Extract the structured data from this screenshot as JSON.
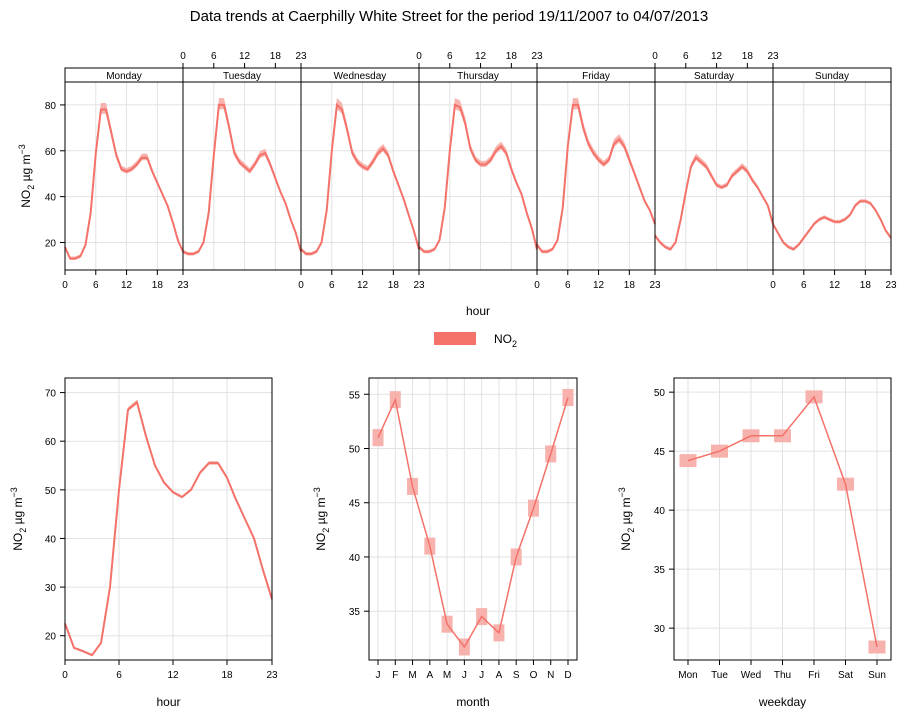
{
  "title": "Data trends at Caerphilly White Street for the period 19/11/2007 to 04/07/2013",
  "colors": {
    "line": "#f4726a",
    "band": "#f7b2ad",
    "panel_border": "#000000",
    "grid": "#e2e2e2"
  },
  "legend": {
    "label": "NO",
    "subscript": "2"
  },
  "ylabel": {
    "pre": "NO",
    "sub": "2",
    "unit": " µg m",
    "sup": "−3"
  },
  "chart_data": [
    {
      "type": "line",
      "name": "weekday-hour",
      "xlabel": "hour",
      "ylim": [
        8,
        90
      ],
      "yticks": [
        20,
        40,
        60,
        80
      ],
      "xticks_bottom": [
        {
          "day": 0,
          "ticks": [
            "0",
            "6",
            "12",
            "18",
            "23"
          ]
        },
        {
          "day": 1,
          "ticks": []
        },
        {
          "day": 2,
          "ticks": [
            "0",
            "6",
            "12",
            "18",
            "23"
          ]
        },
        {
          "day": 3,
          "ticks": []
        },
        {
          "day": 4,
          "ticks": [
            "0",
            "6",
            "12",
            "18",
            "23"
          ]
        },
        {
          "day": 5,
          "ticks": []
        },
        {
          "day": 6,
          "ticks": [
            "0",
            "6",
            "12",
            "18",
            "23"
          ]
        }
      ],
      "xticks_top": [
        {
          "day": 0,
          "ticks": []
        },
        {
          "day": 1,
          "ticks": [
            "0",
            "6",
            "12",
            "18",
            "23"
          ]
        },
        {
          "day": 2,
          "ticks": []
        },
        {
          "day": 3,
          "ticks": [
            "0",
            "6",
            "12",
            "18",
            "23"
          ]
        },
        {
          "day": 4,
          "ticks": []
        },
        {
          "day": 5,
          "ticks": [
            "0",
            "6",
            "12",
            "18",
            "23"
          ]
        },
        {
          "day": 6,
          "ticks": []
        }
      ],
      "xtick_values": [
        0,
        6,
        12,
        18,
        23
      ],
      "days": [
        "Monday",
        "Tuesday",
        "Wednesday",
        "Thursday",
        "Friday",
        "Saturday",
        "Sunday"
      ],
      "series": [
        {
          "values": [
            18,
            13,
            13,
            14,
            19,
            33,
            59,
            78,
            78,
            68,
            58,
            52,
            51,
            52,
            54,
            57,
            57,
            51,
            46,
            41,
            36,
            29,
            21,
            16
          ]
        },
        {
          "values": [
            16,
            15,
            15,
            16,
            20,
            33,
            58,
            80,
            80,
            70,
            59,
            55,
            53,
            51,
            54,
            58,
            59,
            54,
            48,
            42,
            37,
            30,
            24,
            16
          ]
        },
        {
          "values": [
            17,
            15,
            15,
            16,
            20,
            34,
            60,
            80,
            78,
            69,
            59,
            55,
            53,
            52,
            55,
            59,
            61,
            58,
            51,
            45,
            39,
            32,
            25,
            17
          ]
        },
        {
          "values": [
            18,
            16,
            16,
            17,
            21,
            35,
            60,
            80,
            79,
            72,
            61,
            56,
            54,
            54,
            56,
            60,
            62,
            59,
            52,
            46,
            41,
            33,
            26,
            17
          ]
        },
        {
          "values": [
            19,
            16,
            16,
            17,
            21,
            35,
            62,
            80,
            80,
            70,
            63,
            59,
            56,
            54,
            56,
            63,
            65,
            62,
            56,
            50,
            44,
            38,
            34,
            28
          ]
        },
        {
          "values": [
            23,
            20,
            18,
            17,
            20,
            30,
            42,
            53,
            57,
            55,
            53,
            49,
            45,
            44,
            45,
            49,
            51,
            53,
            51,
            47,
            44,
            40,
            36,
            28
          ]
        },
        {
          "values": [
            28,
            24,
            20,
            18,
            17,
            19,
            22,
            25,
            28,
            30,
            31,
            30,
            29,
            29,
            30,
            32,
            36,
            38,
            38,
            37,
            34,
            30,
            25,
            22
          ]
        }
      ]
    },
    {
      "type": "line",
      "name": "hour",
      "xlabel": "hour",
      "xlim": [
        0,
        23
      ],
      "ylim": [
        15,
        73
      ],
      "xticks": [
        0,
        6,
        12,
        18,
        23
      ],
      "yticks": [
        20,
        30,
        40,
        50,
        60,
        70
      ],
      "x": [
        0,
        1,
        2,
        3,
        4,
        5,
        6,
        7,
        8,
        9,
        10,
        11,
        12,
        13,
        14,
        15,
        16,
        17,
        18,
        19,
        20,
        21,
        22,
        23
      ],
      "values": [
        22.5,
        17.5,
        16.8,
        16.0,
        18.5,
        30.0,
        50.0,
        66.5,
        68.0,
        61.0,
        55.0,
        51.5,
        49.5,
        48.5,
        50.0,
        53.5,
        55.5,
        55.5,
        52.5,
        48.0,
        44.0,
        40.0,
        33.5,
        27.5
      ]
    },
    {
      "type": "line",
      "name": "month",
      "xlabel": "month",
      "ylim": [
        30.5,
        56.5
      ],
      "yticks": [
        35,
        40,
        45,
        50,
        55
      ],
      "categories": [
        "J",
        "F",
        "M",
        "A",
        "M",
        "J",
        "J",
        "A",
        "S",
        "O",
        "N",
        "D"
      ],
      "values": [
        51.0,
        54.5,
        46.5,
        41.0,
        33.8,
        31.7,
        34.5,
        33.0,
        40.0,
        44.5,
        49.5,
        54.7
      ]
    },
    {
      "type": "line",
      "name": "weekday",
      "xlabel": "weekday",
      "ylim": [
        27.3,
        51.2
      ],
      "yticks": [
        30,
        35,
        40,
        45,
        50
      ],
      "categories": [
        "Mon",
        "Tue",
        "Wed",
        "Thu",
        "Fri",
        "Sat",
        "Sun"
      ],
      "values": [
        44.2,
        45.0,
        46.3,
        46.3,
        49.6,
        42.2,
        28.4
      ]
    }
  ]
}
